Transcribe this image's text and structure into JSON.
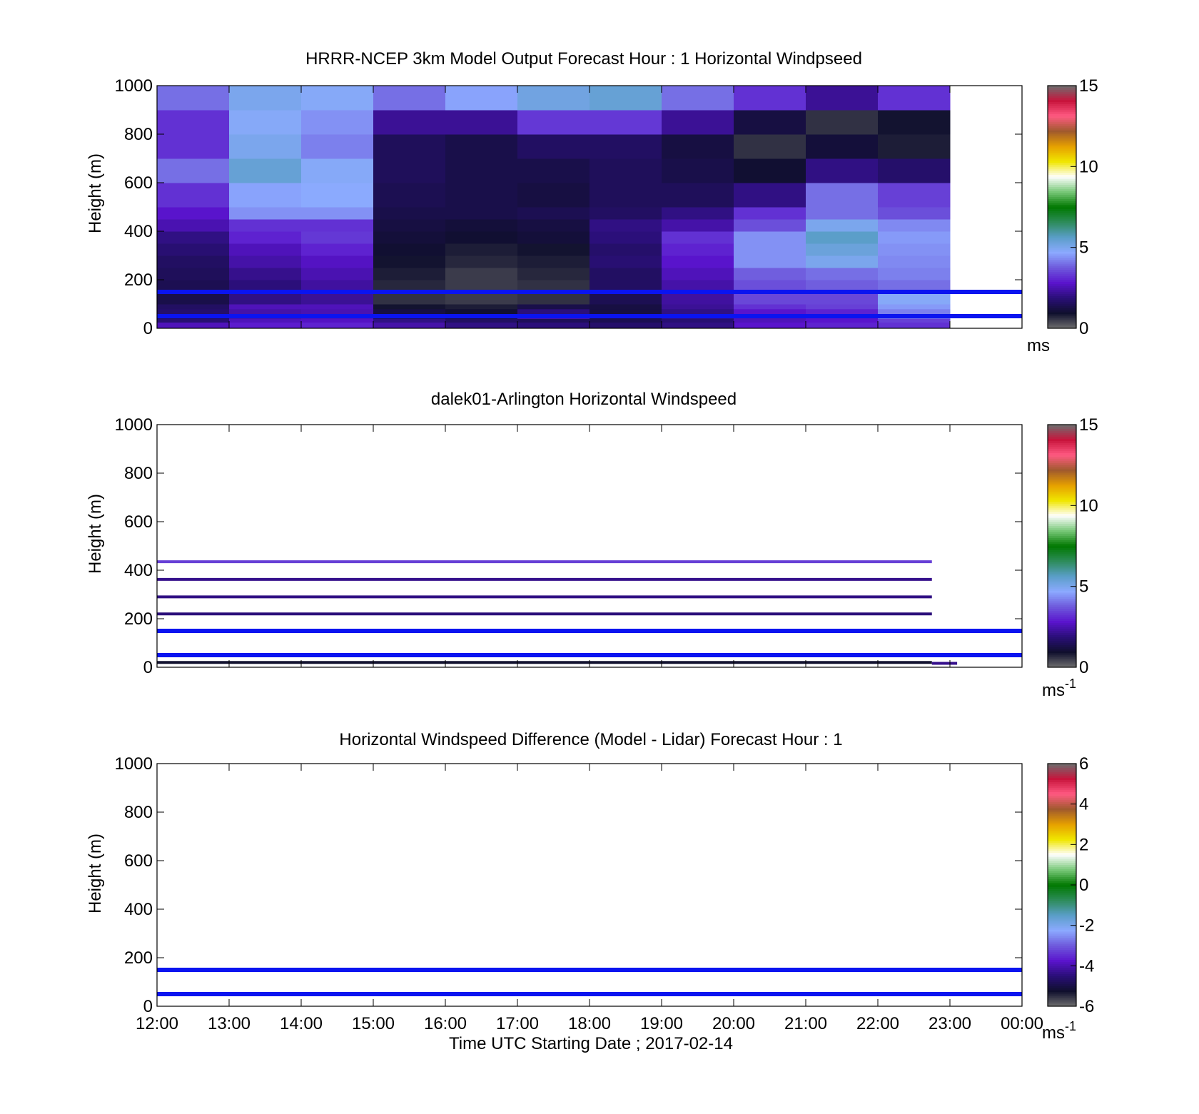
{
  "chart_data": [
    {
      "type": "heatmap",
      "title": "HRRR-NCEP 3km Model Output   Forecast Hour : 1 Horizontal Windpseed",
      "ylabel": "Height (m)",
      "xlabel": "",
      "ylim": [
        0,
        1000
      ],
      "xlim": [
        12,
        24
      ],
      "yticks": [
        "0",
        "200",
        "400",
        "600",
        "800",
        "1000"
      ],
      "xticks": [],
      "colorbar": {
        "min": 0,
        "max": 15,
        "ticks": [
          "0",
          "5",
          "10",
          "15"
        ],
        "unit": "ms"
      },
      "x_start_hours": [
        12,
        13,
        14,
        15,
        16,
        17,
        18,
        19,
        20,
        21,
        22
      ],
      "x_step_hours": 1,
      "layer_bounds_m": [
        0,
        25,
        40,
        60,
        80,
        100,
        150,
        200,
        250,
        300,
        350,
        400,
        450,
        500,
        600,
        700,
        800,
        900,
        1000
      ],
      "speed_ms": [
        [
          2.6,
          2.9,
          3.0,
          2.4,
          2.0,
          1.9,
          1.7,
          2.0,
          2.8,
          3.0,
          3.2
        ],
        [
          1.8,
          2.6,
          2.7,
          2.0,
          1.6,
          1.5,
          1.4,
          1.8,
          2.6,
          2.8,
          3.4
        ],
        [
          1.6,
          2.4,
          2.6,
          1.5,
          1.3,
          2.5,
          1.4,
          2.0,
          2.6,
          2.8,
          4.0
        ],
        [
          1.7,
          2.4,
          2.5,
          1.2,
          1.0,
          1.9,
          1.2,
          2.0,
          2.8,
          3.0,
          4.2
        ],
        [
          1.6,
          2.6,
          2.6,
          0.9,
          0.8,
          1.3,
          1.2,
          2.2,
          3.2,
          3.4,
          4.5
        ],
        [
          1.3,
          2.0,
          2.2,
          0.6,
          0.5,
          0.6,
          1.4,
          2.3,
          3.5,
          3.5,
          4.8
        ],
        [
          1.4,
          1.9,
          2.3,
          0.7,
          0.5,
          0.6,
          1.6,
          2.4,
          3.6,
          3.8,
          4.0
        ],
        [
          1.5,
          2.1,
          2.5,
          0.8,
          0.5,
          0.7,
          1.6,
          2.6,
          3.8,
          4.0,
          4.2
        ],
        [
          1.6,
          2.4,
          2.7,
          0.9,
          0.7,
          0.8,
          1.8,
          2.8,
          4.4,
          5.0,
          4.3
        ],
        [
          1.8,
          2.6,
          3.0,
          1.0,
          0.8,
          0.9,
          1.7,
          3.0,
          4.4,
          5.3,
          4.4
        ],
        [
          2.0,
          3.0,
          3.3,
          1.1,
          1.0,
          1.1,
          1.9,
          3.2,
          4.4,
          5.6,
          4.5
        ],
        [
          2.5,
          3.2,
          3.2,
          1.2,
          1.1,
          1.2,
          2.0,
          2.4,
          3.6,
          5.0,
          4.3
        ],
        [
          2.8,
          4.4,
          4.4,
          1.3,
          1.3,
          1.4,
          1.6,
          2.0,
          3.2,
          4.0,
          3.6
        ],
        [
          3.2,
          4.6,
          4.7,
          1.4,
          1.3,
          1.2,
          1.5,
          1.5,
          2.0,
          4.0,
          3.4
        ],
        [
          4.0,
          5.4,
          4.8,
          1.5,
          1.3,
          1.3,
          1.5,
          1.3,
          1.0,
          2.0,
          1.7
        ],
        [
          3.2,
          5.0,
          4.2,
          1.5,
          1.3,
          1.6,
          1.6,
          1.2,
          0.6,
          1.1,
          0.8
        ],
        [
          3.2,
          4.8,
          4.4,
          2.2,
          2.2,
          3.3,
          3.3,
          2.2,
          1.2,
          0.6,
          0.9
        ],
        [
          4.0,
          5.0,
          4.8,
          4.0,
          4.6,
          5.2,
          5.4,
          4.0,
          3.2,
          2.2,
          3.2
        ]
      ],
      "reference_lines_m": [
        50,
        150
      ]
    },
    {
      "type": "heatmap",
      "title": "dalek01-Arlington  Horizontal Windspeed",
      "ylabel": "Height (m)",
      "xlabel": "",
      "ylim": [
        0,
        1000
      ],
      "xlim": [
        12,
        24
      ],
      "yticks": [
        "0",
        "200",
        "400",
        "600",
        "800",
        "1000"
      ],
      "xticks": [],
      "colorbar": {
        "min": 0,
        "max": 15,
        "ticks": [
          "0",
          "5",
          "10",
          "15"
        ],
        "unit": "ms",
        "unit_exponent": "-1"
      },
      "lidar_levels": [
        {
          "height_m": 435,
          "speed_ms": 3.4,
          "x_start": 12,
          "x_end": 22.75
        },
        {
          "height_m": 362,
          "speed_ms": 2.1,
          "x_start": 12,
          "x_end": 22.75
        },
        {
          "height_m": 290,
          "speed_ms": 2.0,
          "x_start": 12,
          "x_end": 22.75
        },
        {
          "height_m": 220,
          "speed_ms": 1.9,
          "x_start": 12,
          "x_end": 22.75
        },
        {
          "height_m": 20,
          "speed_ms": 0.9,
          "x_start": 12,
          "x_end": 22.75
        },
        {
          "height_m": 16,
          "speed_ms": 2.1,
          "x_start": 22.75,
          "x_end": 23.1
        }
      ],
      "reference_lines_m": [
        50,
        150
      ]
    },
    {
      "type": "heatmap",
      "title": "Horizontal Windspeed Difference (Model - Lidar) Forecast Hour : 1",
      "ylabel": "Height (m)",
      "xlabel": "Time UTC  Starting Date ; 2017-02-14",
      "ylim": [
        0,
        1000
      ],
      "xlim": [
        12,
        24
      ],
      "yticks": [
        "0",
        "200",
        "400",
        "600",
        "800",
        "1000"
      ],
      "xticks": [
        "12:00",
        "13:00",
        "14:00",
        "15:00",
        "16:00",
        "17:00",
        "18:00",
        "19:00",
        "20:00",
        "21:00",
        "22:00",
        "23:00",
        "00:00"
      ],
      "colorbar": {
        "min": -6,
        "max": 6,
        "ticks": [
          "-6",
          "-4",
          "-2",
          "0",
          "2",
          "4",
          "6"
        ],
        "unit": "ms",
        "unit_exponent": "-1"
      },
      "values": [],
      "reference_lines_m": [
        50,
        150
      ]
    }
  ],
  "colors": {
    "reference_line": "#0a14f0",
    "colormap": [
      "#6e6e6e",
      "#0f0f2d",
      "#2a0f78",
      "#5a14cd",
      "#6e5adc",
      "#8caaff",
      "#5a9ec8",
      "#2d8c5a",
      "#007800",
      "#78c878",
      "#ffffff",
      "#f0e600",
      "#e6a000",
      "#a05a2d",
      "#ff5a82",
      "#c8143c",
      "#6e6e6e"
    ]
  }
}
